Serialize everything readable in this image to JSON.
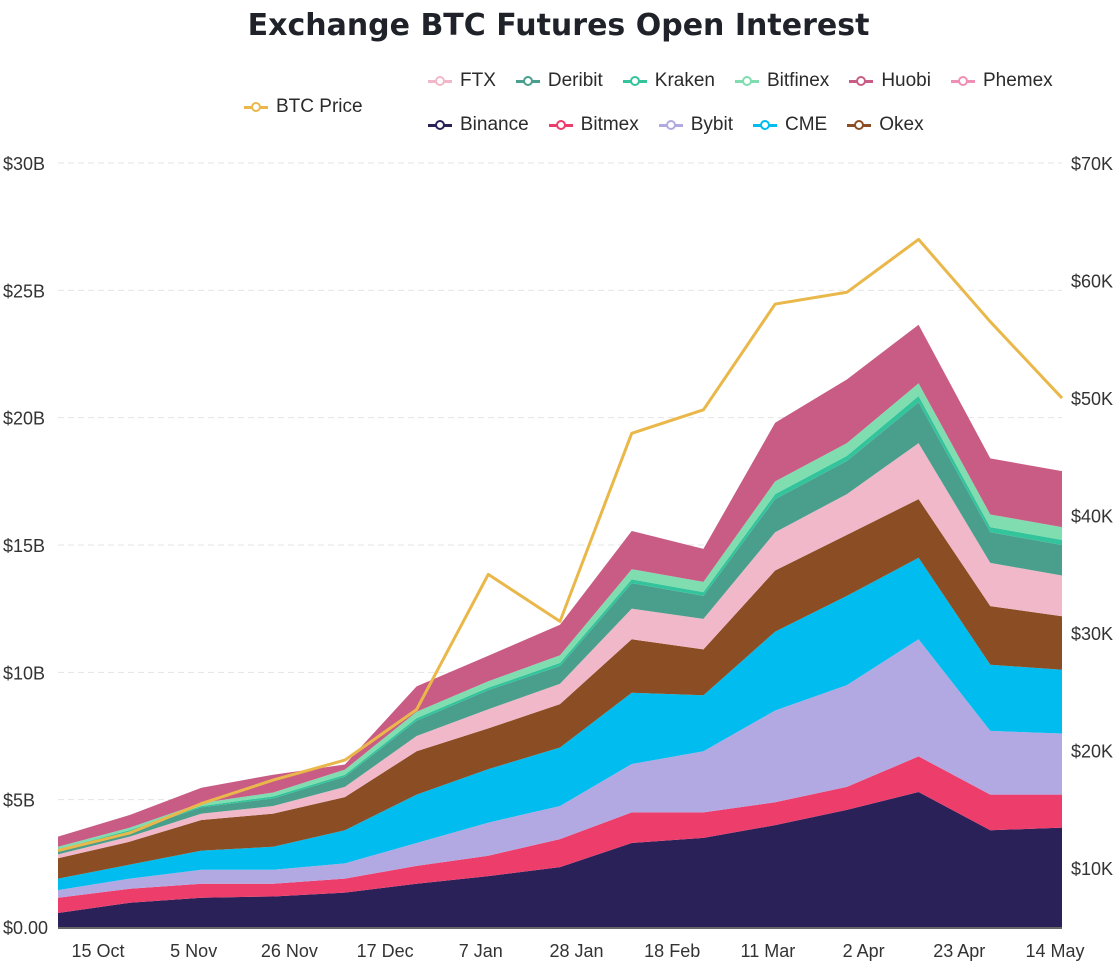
{
  "chart_data": {
    "type": "area",
    "title": "Exchange BTC Futures Open Interest",
    "stacked": true,
    "x_tick_labels": [
      "15 Oct",
      "5 Nov",
      "26 Nov",
      "17 Dec",
      "7 Jan",
      "28 Jan",
      "18 Feb",
      "11 Mar",
      "2 Apr",
      "23 Apr",
      "14 May"
    ],
    "y_left": {
      "ticks": [
        "$0.00",
        "$5B",
        "$10B",
        "$15B",
        "$20B",
        "$25B",
        "$30B"
      ],
      "range": [
        0,
        30
      ]
    },
    "y_right": {
      "ticks": [
        "$10K",
        "$20K",
        "$30K",
        "$40K",
        "$50K",
        "$60K",
        "$70K"
      ],
      "range": [
        5000,
        70000
      ]
    },
    "grid": "horizontal dashed",
    "legend_position": "top",
    "series": [
      {
        "name": "Binance",
        "color": "#2b2159",
        "values": [
          0.55,
          0.95,
          1.15,
          1.2,
          1.35,
          1.7,
          2.0,
          2.35,
          3.3,
          3.5,
          4.0,
          4.6,
          5.3,
          3.8,
          3.9
        ]
      },
      {
        "name": "Bitmex",
        "color": "#ec3d6b",
        "values": [
          0.6,
          0.55,
          0.55,
          0.5,
          0.55,
          0.7,
          0.8,
          1.1,
          1.2,
          1.0,
          0.9,
          0.9,
          1.4,
          1.4,
          1.3
        ]
      },
      {
        "name": "Bybit",
        "color": "#b3a9e2",
        "values": [
          0.3,
          0.4,
          0.55,
          0.55,
          0.6,
          0.9,
          1.3,
          1.3,
          1.9,
          2.4,
          3.6,
          4.0,
          4.6,
          2.5,
          2.4
        ]
      },
      {
        "name": "CME",
        "color": "#00bcef",
        "values": [
          0.45,
          0.55,
          0.75,
          0.9,
          1.3,
          1.9,
          2.1,
          2.3,
          2.8,
          2.2,
          3.1,
          3.5,
          3.2,
          2.6,
          2.5
        ]
      },
      {
        "name": "Okex",
        "color": "#8b4d24",
        "values": [
          0.8,
          0.9,
          1.2,
          1.3,
          1.3,
          1.7,
          1.6,
          1.7,
          2.1,
          1.8,
          2.4,
          2.4,
          2.3,
          2.3,
          2.1
        ]
      },
      {
        "name": "FTX",
        "color": "#f0b8c8",
        "values": [
          0.15,
          0.2,
          0.25,
          0.3,
          0.4,
          0.6,
          0.75,
          0.8,
          1.2,
          1.2,
          1.5,
          1.6,
          2.2,
          1.7,
          1.6
        ]
      },
      {
        "name": "Deribit",
        "color": "#4a9e8c",
        "values": [
          0.15,
          0.2,
          0.25,
          0.3,
          0.4,
          0.6,
          0.75,
          0.7,
          1.0,
          0.9,
          1.3,
          1.3,
          1.6,
          1.2,
          1.2
        ]
      },
      {
        "name": "Kraken",
        "color": "#33c49c",
        "values": [
          0.05,
          0.05,
          0.05,
          0.08,
          0.08,
          0.1,
          0.1,
          0.12,
          0.15,
          0.15,
          0.2,
          0.2,
          0.25,
          0.2,
          0.2
        ]
      },
      {
        "name": "Bitfinex",
        "color": "#7fddb0",
        "values": [
          0.1,
          0.1,
          0.12,
          0.15,
          0.2,
          0.25,
          0.25,
          0.3,
          0.4,
          0.4,
          0.5,
          0.5,
          0.5,
          0.5,
          0.5
        ]
      },
      {
        "name": "Huobi",
        "color": "#c95c84",
        "values": [
          0.4,
          0.5,
          0.6,
          0.7,
          0.2,
          1.0,
          1.0,
          1.2,
          1.5,
          1.3,
          2.3,
          2.5,
          2.3,
          2.2,
          2.2
        ]
      },
      {
        "name": "Phemex",
        "color": "#f08fb4",
        "values": [
          0.0,
          0.0,
          0.0,
          0.0,
          0.0,
          0.0,
          0.0,
          0.0,
          0.0,
          0.0,
          0.0,
          0.0,
          0.0,
          0.0,
          0.0
        ]
      }
    ],
    "btc_price": {
      "name": "BTC Price",
      "color": "#eab84a",
      "values": [
        11500,
        13000,
        15500,
        17500,
        19200,
        23500,
        35000,
        31000,
        47000,
        49000,
        58000,
        59000,
        63500,
        56500,
        50000
      ]
    }
  }
}
